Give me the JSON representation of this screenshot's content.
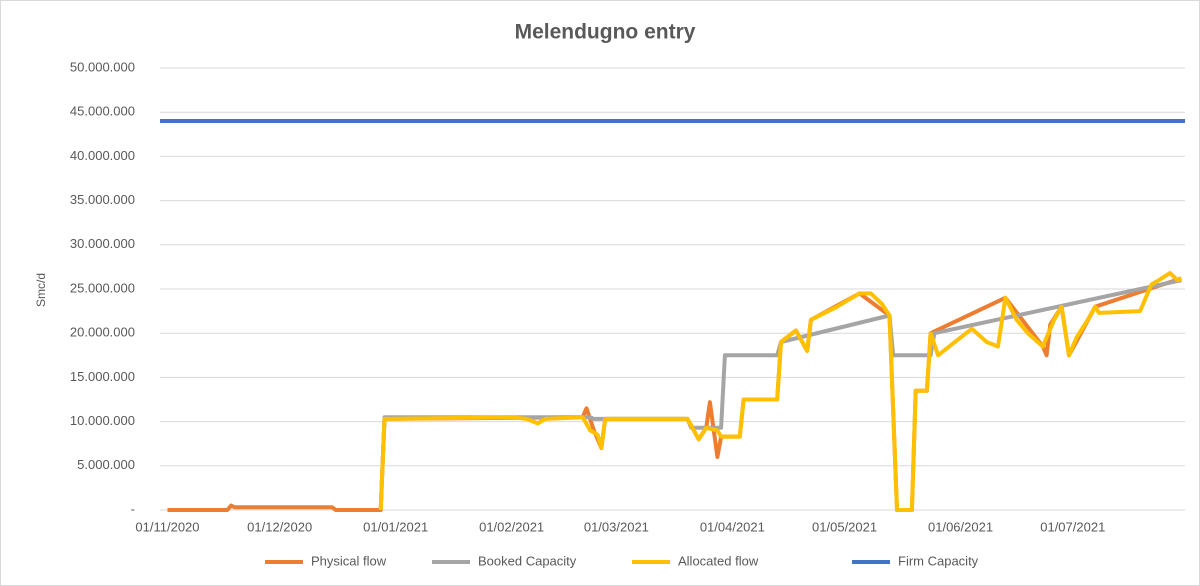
{
  "chart_data": {
    "type": "line",
    "title": "Melendugno  entry",
    "y_label": "Smc/d",
    "xlim": [
      "30/10/2020",
      "31/07/2021"
    ],
    "xticks": [
      "01/11/2020",
      "01/12/2020",
      "01/01/2021",
      "01/02/2021",
      "01/03/2021",
      "01/04/2021",
      "01/05/2021",
      "01/06/2021",
      "01/07/2021"
    ],
    "ylim": [
      0,
      50000000
    ],
    "yticks": [
      {
        "value": 0,
        "label": "-"
      },
      {
        "value": 5000000,
        "label": "5.000.000"
      },
      {
        "value": 10000000,
        "label": "10.000.000"
      },
      {
        "value": 15000000,
        "label": "15.000.000"
      },
      {
        "value": 20000000,
        "label": "20.000.000"
      },
      {
        "value": 25000000,
        "label": "25.000.000"
      },
      {
        "value": 30000000,
        "label": "30.000.000"
      },
      {
        "value": 35000000,
        "label": "35.000.000"
      },
      {
        "value": 40000000,
        "label": "40.000.000"
      },
      {
        "value": 45000000,
        "label": "45.000.000"
      },
      {
        "value": 50000000,
        "label": "50.000.000"
      }
    ],
    "grid": true,
    "legend": "bottom",
    "series": [
      {
        "name": "Physical flow",
        "color": "#ed7d31",
        "x": [
          "01/11/2020",
          "17/11/2020",
          "18/11/2020",
          "19/11/2020",
          "15/12/2020",
          "16/12/2020",
          "28/12/2020",
          "29/12/2020",
          "20/02/2021",
          "21/02/2021",
          "23/02/2021",
          "25/02/2021",
          "26/02/2021",
          "20/03/2021",
          "23/03/2021",
          "25/03/2021",
          "26/03/2021",
          "28/03/2021",
          "29/03/2021",
          "03/04/2021",
          "04/04/2021",
          "13/04/2021",
          "14/04/2021",
          "18/04/2021",
          "21/04/2021",
          "22/04/2021",
          "05/05/2021",
          "13/05/2021",
          "15/05/2021",
          "19/05/2021",
          "20/05/2021",
          "23/05/2021",
          "24/05/2021",
          "13/06/2021",
          "23/06/2021",
          "24/06/2021",
          "25/06/2021",
          "28/06/2021",
          "30/06/2021",
          "07/07/2021",
          "30/07/2021"
        ],
        "values": [
          0,
          0,
          500000,
          300000,
          300000,
          0,
          0,
          10300000,
          10500000,
          11500000,
          9000000,
          7000000,
          10300000,
          10300000,
          8000000,
          9300000,
          12200000,
          6000000,
          8300000,
          8300000,
          12500000,
          12500000,
          19000000,
          20300000,
          18000000,
          21500000,
          24500000,
          22000000,
          0,
          0,
          13500000,
          13500000,
          20000000,
          24000000,
          18500000,
          17500000,
          21000000,
          23000000,
          17500000,
          23000000,
          26200000
        ]
      },
      {
        "name": "Booked Capacity",
        "color": "#a5a5a5",
        "x": [
          "28/12/2020",
          "29/12/2020",
          "22/02/2021",
          "23/02/2021",
          "20/03/2021",
          "21/03/2021",
          "29/03/2021",
          "30/03/2021",
          "13/04/2021",
          "14/04/2021",
          "13/05/2021",
          "14/05/2021",
          "24/05/2021",
          "25/05/2021",
          "30/07/2021"
        ],
        "values": [
          0,
          10500000,
          10500000,
          10300000,
          10300000,
          9300000,
          9300000,
          17500000,
          17500000,
          19000000,
          22000000,
          17500000,
          17500000,
          20000000,
          26000000
        ]
      },
      {
        "name": "Allocated flow",
        "color": "#ffc000",
        "x": [
          "28/12/2020",
          "29/12/2020",
          "15/01/2021",
          "01/02/2021",
          "05/02/2021",
          "08/02/2021",
          "10/02/2021",
          "20/02/2021",
          "22/02/2021",
          "24/02/2021",
          "25/02/2021",
          "26/02/2021",
          "20/03/2021",
          "23/03/2021",
          "25/03/2021",
          "28/03/2021",
          "29/03/2021",
          "03/04/2021",
          "04/04/2021",
          "13/04/2021",
          "14/04/2021",
          "18/04/2021",
          "21/04/2021",
          "22/04/2021",
          "29/04/2021",
          "05/05/2021",
          "08/05/2021",
          "11/05/2021",
          "13/05/2021",
          "15/05/2021",
          "19/05/2021",
          "20/05/2021",
          "23/05/2021",
          "24/05/2021",
          "26/05/2021",
          "01/06/2021",
          "04/06/2021",
          "08/06/2021",
          "11/06/2021",
          "13/06/2021",
          "16/06/2021",
          "19/06/2021",
          "23/06/2021",
          "26/06/2021",
          "28/06/2021",
          "30/06/2021",
          "02/07/2021",
          "05/07/2021",
          "07/07/2021",
          "08/07/2021",
          "19/07/2021",
          "22/07/2021",
          "24/07/2021",
          "27/07/2021",
          "29/07/2021",
          "30/07/2021"
        ],
        "values": [
          0,
          10300000,
          10400000,
          10500000,
          10300000,
          9800000,
          10300000,
          10500000,
          9000000,
          8500000,
          7000000,
          10300000,
          10300000,
          8000000,
          9300000,
          9000000,
          8300000,
          8300000,
          12500000,
          12500000,
          19000000,
          20300000,
          18000000,
          21500000,
          23000000,
          24500000,
          24500000,
          23300000,
          22000000,
          0,
          0,
          13500000,
          13500000,
          20000000,
          17500000,
          19500000,
          20500000,
          19000000,
          18500000,
          24000000,
          21500000,
          20000000,
          18500000,
          21500000,
          23000000,
          17500000,
          19500000,
          21500000,
          23000000,
          22300000,
          22500000,
          25500000,
          26000000,
          26800000,
          26000000,
          26200000
        ]
      },
      {
        "name": "Firm Capacity",
        "color": "#4472c4",
        "x": [
          "30/10/2020",
          "31/07/2021"
        ],
        "values": [
          44000000,
          44000000
        ]
      }
    ]
  }
}
